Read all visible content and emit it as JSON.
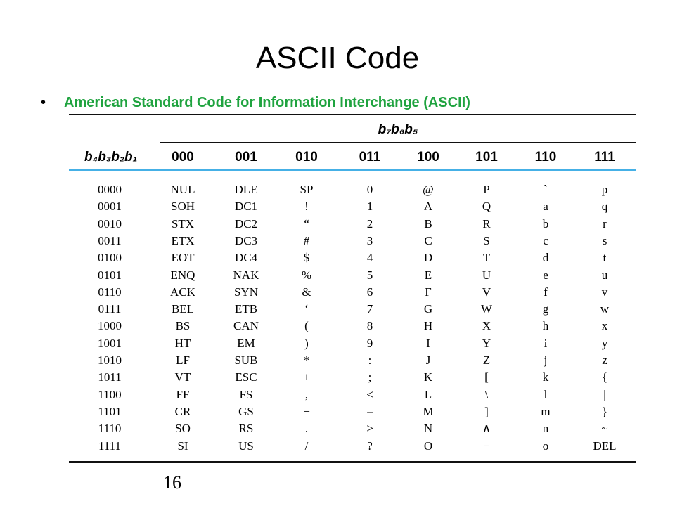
{
  "title": "ASCII Code",
  "bullet": "American Standard Code for Information Interchange (ASCII)",
  "table": {
    "group_header": "b₇b₆b₅",
    "row_header": "b₄b₃b₂b₁",
    "columns": [
      "000",
      "001",
      "010",
      "011",
      "100",
      "101",
      "110",
      "111"
    ],
    "rows": [
      {
        "code": "0000",
        "cells": [
          "NUL",
          "DLE",
          "SP",
          "0",
          "@",
          "P",
          "`",
          "p"
        ]
      },
      {
        "code": "0001",
        "cells": [
          "SOH",
          "DC1",
          "!",
          "1",
          "A",
          "Q",
          "a",
          "q"
        ]
      },
      {
        "code": "0010",
        "cells": [
          "STX",
          "DC2",
          "“",
          "2",
          "B",
          "R",
          "b",
          "r"
        ]
      },
      {
        "code": "0011",
        "cells": [
          "ETX",
          "DC3",
          "#",
          "3",
          "C",
          "S",
          "c",
          "s"
        ]
      },
      {
        "code": "0100",
        "cells": [
          "EOT",
          "DC4",
          "$",
          "4",
          "D",
          "T",
          "d",
          "t"
        ]
      },
      {
        "code": "0101",
        "cells": [
          "ENQ",
          "NAK",
          "%",
          "5",
          "E",
          "U",
          "e",
          "u"
        ]
      },
      {
        "code": "0110",
        "cells": [
          "ACK",
          "SYN",
          "&",
          "6",
          "F",
          "V",
          "f",
          "v"
        ]
      },
      {
        "code": "0111",
        "cells": [
          "BEL",
          "ETB",
          "‘",
          "7",
          "G",
          "W",
          "g",
          "w"
        ]
      },
      {
        "code": "1000",
        "cells": [
          "BS",
          "CAN",
          "(",
          "8",
          "H",
          "X",
          "h",
          "x"
        ]
      },
      {
        "code": "1001",
        "cells": [
          "HT",
          "EM",
          ")",
          "9",
          "I",
          "Y",
          "i",
          "y"
        ]
      },
      {
        "code": "1010",
        "cells": [
          "LF",
          "SUB",
          "*",
          ":",
          "J",
          "Z",
          "j",
          "z"
        ]
      },
      {
        "code": "1011",
        "cells": [
          "VT",
          "ESC",
          "+",
          ";",
          "K",
          "[",
          "k",
          "{"
        ]
      },
      {
        "code": "1100",
        "cells": [
          "FF",
          "FS",
          ",",
          "<",
          "L",
          "\\",
          "l",
          "|"
        ]
      },
      {
        "code": "1101",
        "cells": [
          "CR",
          "GS",
          "−",
          "=",
          "M",
          "]",
          "m",
          "}"
        ]
      },
      {
        "code": "1110",
        "cells": [
          "SO",
          "RS",
          ".",
          ">",
          "N",
          "∧",
          "n",
          "~"
        ]
      },
      {
        "code": "1111",
        "cells": [
          "SI",
          "US",
          "/",
          "?",
          "O",
          "−",
          "o",
          "DEL"
        ]
      }
    ]
  },
  "page_number": "16",
  "colors": {
    "bullet_text": "#1fa33f",
    "header_rule": "#45b0e6"
  }
}
